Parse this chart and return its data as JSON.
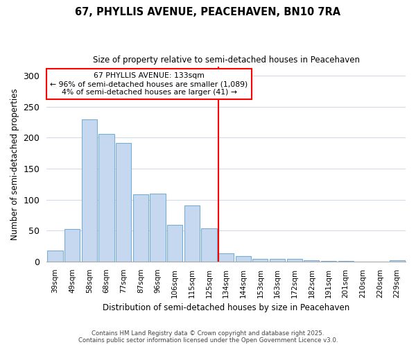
{
  "title": "67, PHYLLIS AVENUE, PEACEHAVEN, BN10 7RA",
  "subtitle": "Size of property relative to semi-detached houses in Peacehaven",
  "xlabel": "Distribution of semi-detached houses by size in Peacehaven",
  "ylabel": "Number of semi-detached properties",
  "categories": [
    "39sqm",
    "49sqm",
    "58sqm",
    "68sqm",
    "77sqm",
    "87sqm",
    "96sqm",
    "106sqm",
    "115sqm",
    "125sqm",
    "134sqm",
    "144sqm",
    "153sqm",
    "163sqm",
    "172sqm",
    "182sqm",
    "191sqm",
    "201sqm",
    "210sqm",
    "220sqm",
    "229sqm"
  ],
  "values": [
    18,
    52,
    229,
    206,
    191,
    108,
    110,
    59,
    91,
    53,
    13,
    9,
    4,
    4,
    4,
    2,
    1,
    1,
    0,
    0,
    2
  ],
  "bar_color": "#c5d8f0",
  "bar_edge_color": "#7aadd4",
  "highlight_index": 10,
  "annotation_text": "67 PHYLLIS AVENUE: 133sqm\n← 96% of semi-detached houses are smaller (1,089)\n4% of semi-detached houses are larger (41) →",
  "ylim": [
    0,
    315
  ],
  "yticks": [
    0,
    50,
    100,
    150,
    200,
    250,
    300
  ],
  "footer_line1": "Contains HM Land Registry data © Crown copyright and database right 2025.",
  "footer_line2": "Contains public sector information licensed under the Open Government Licence v3.0.",
  "background_color": "#ffffff",
  "grid_color": "#d0d8e8"
}
